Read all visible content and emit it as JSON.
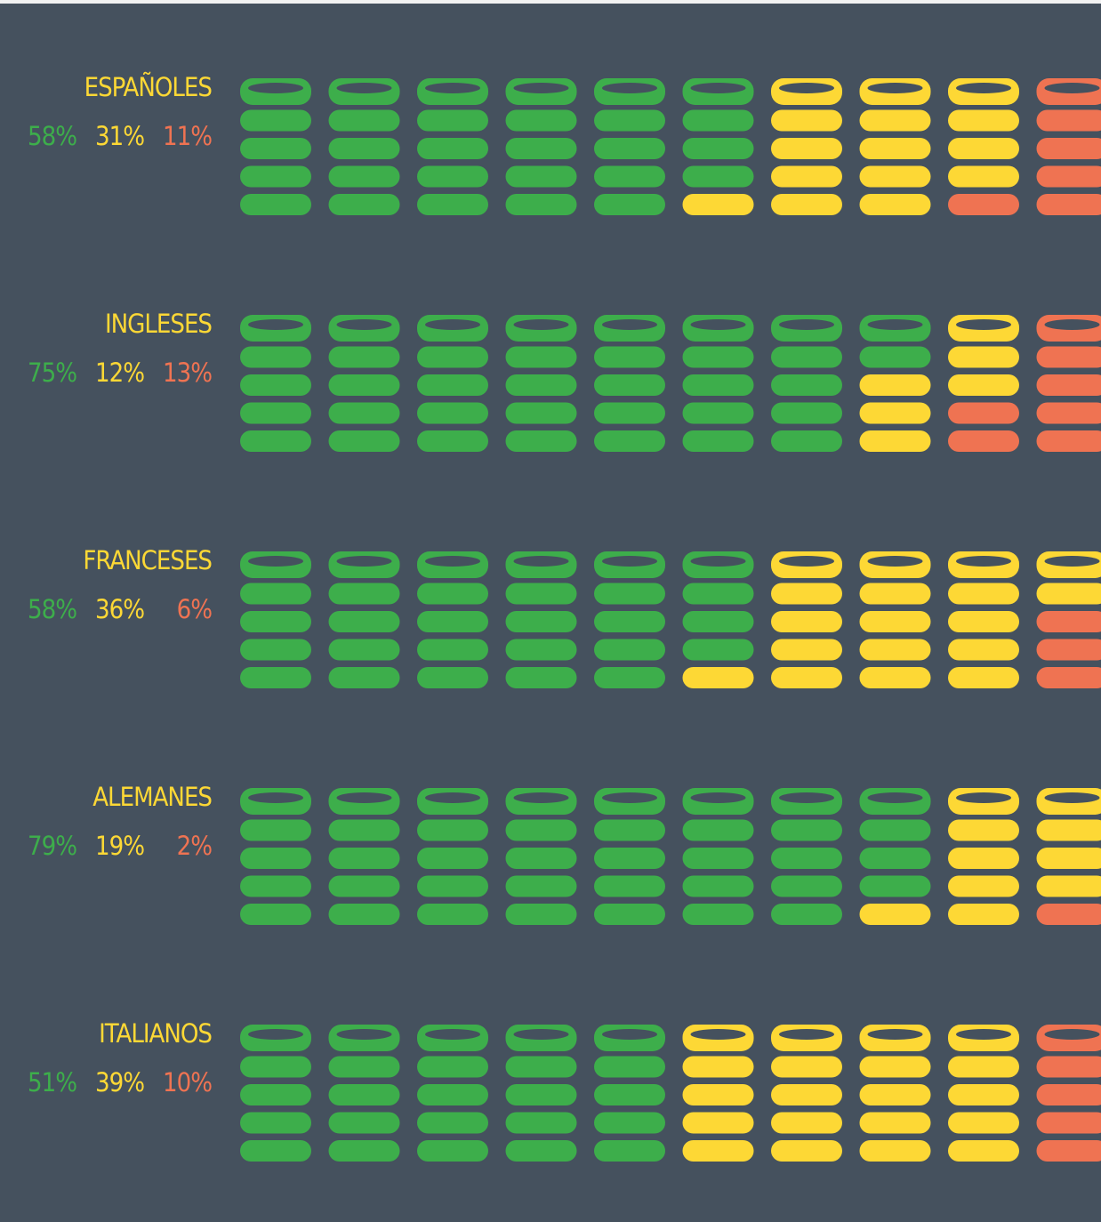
{
  "chart_data": {
    "type": "coin-stacks",
    "colors": [
      "#3dae4b",
      "#fdd835",
      "#ef7352"
    ],
    "groups": [
      {
        "label": "ESPAÑOLES",
        "values": [
          58,
          31,
          11
        ],
        "value_labels": [
          "58%",
          "31%",
          "11%"
        ]
      },
      {
        "label": "INGLESES",
        "values": [
          75,
          12,
          13
        ],
        "value_labels": [
          "75%",
          "12%",
          "13%"
        ]
      },
      {
        "label": "FRANCESES",
        "values": [
          58,
          36,
          6
        ],
        "value_labels": [
          "58%",
          "36%",
          "6%"
        ]
      },
      {
        "label": "ALEMANES",
        "values": [
          79,
          19,
          2
        ],
        "value_labels": [
          "79%",
          "19%",
          "2%"
        ]
      },
      {
        "label": "ITALIANOS",
        "values": [
          51,
          39,
          10
        ],
        "value_labels": [
          "51%",
          "39%",
          "10%"
        ]
      }
    ]
  }
}
